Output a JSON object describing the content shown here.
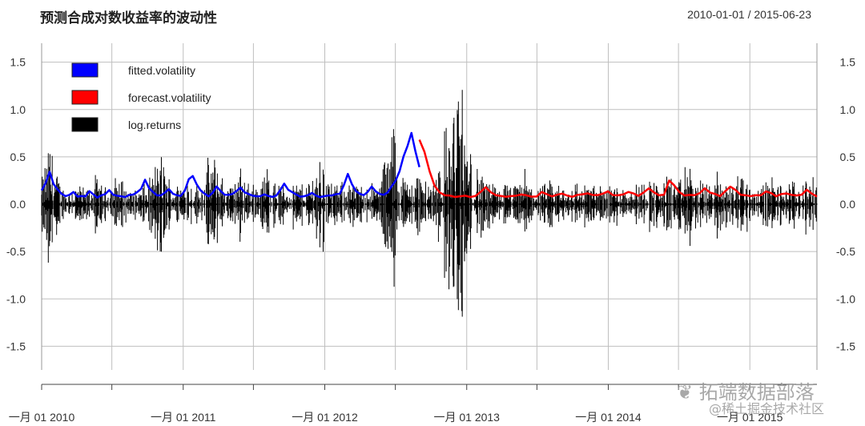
{
  "title": "预测合成对数收益率的波动性",
  "date_range": "2010-01-01 / 2015-06-23",
  "watermark": {
    "line1": "❦ 拓端数据部落",
    "line2": "@稀土掘金技术社区"
  },
  "colors": {
    "fitted": "#0000ff",
    "forecast": "#ff0000",
    "returns": "#000000",
    "grid": "#bfbfbf"
  },
  "chart_data": {
    "type": "line",
    "x_ticks": [
      "一月 01 2010",
      "一月 01 2011",
      "一月 01 2012",
      "一月 01 2013",
      "一月 01 2014",
      "一月 01 2015"
    ],
    "xlim": [
      "2010-01-01",
      "2015-06-23"
    ],
    "ylim": [
      -1.75,
      1.7
    ],
    "y_ticks": [
      1.5,
      1.0,
      0.5,
      0.0,
      -0.5,
      -1.0,
      -1.5
    ],
    "y_tick_labels": [
      "1.5",
      "1.0",
      "0.5",
      "0.0",
      "-0.5",
      "-1.0",
      "-1.5"
    ],
    "grid": true,
    "legend_placement": "top-left",
    "series": [
      {
        "name": "fitted.volatility",
        "x_start": "2010-01-01",
        "x_end": "2012-09-01",
        "values": [
          0.14,
          0.22,
          0.35,
          0.22,
          0.15,
          0.11,
          0.09,
          0.1,
          0.12,
          0.09,
          0.08,
          0.09,
          0.13,
          0.1,
          0.08,
          0.09,
          0.11,
          0.15,
          0.11,
          0.09,
          0.08,
          0.08,
          0.09,
          0.1,
          0.12,
          0.17,
          0.26,
          0.18,
          0.12,
          0.1,
          0.09,
          0.12,
          0.16,
          0.12,
          0.1,
          0.09,
          0.14,
          0.26,
          0.3,
          0.2,
          0.14,
          0.11,
          0.09,
          0.13,
          0.19,
          0.14,
          0.11,
          0.09,
          0.1,
          0.13,
          0.18,
          0.13,
          0.1,
          0.09,
          0.08,
          0.09,
          0.11,
          0.09,
          0.08,
          0.1,
          0.15,
          0.22,
          0.16,
          0.12,
          0.1,
          0.09,
          0.08,
          0.09,
          0.11,
          0.09,
          0.08,
          0.09,
          0.1,
          0.09,
          0.1,
          0.12,
          0.21,
          0.32,
          0.22,
          0.14,
          0.11,
          0.1,
          0.13,
          0.19,
          0.14,
          0.11,
          0.1,
          0.12,
          0.18,
          0.25,
          0.35,
          0.5,
          0.62,
          0.75,
          0.55,
          0.4
        ]
      },
      {
        "name": "forecast.volatility",
        "x_start": "2012-09-01",
        "x_end": "2015-06-23",
        "values": [
          0.68,
          0.55,
          0.35,
          0.2,
          0.13,
          0.1,
          0.09,
          0.08,
          0.09,
          0.1,
          0.08,
          0.09,
          0.14,
          0.18,
          0.12,
          0.09,
          0.08,
          0.08,
          0.09,
          0.1,
          0.11,
          0.09,
          0.08,
          0.09,
          0.13,
          0.1,
          0.09,
          0.1,
          0.12,
          0.09,
          0.08,
          0.09,
          0.1,
          0.12,
          0.1,
          0.09,
          0.11,
          0.14,
          0.1,
          0.09,
          0.1,
          0.13,
          0.11,
          0.09,
          0.12,
          0.16,
          0.12,
          0.1,
          0.11,
          0.26,
          0.2,
          0.13,
          0.1,
          0.09,
          0.1,
          0.12,
          0.16,
          0.13,
          0.1,
          0.09,
          0.13,
          0.18,
          0.15,
          0.11,
          0.09,
          0.08,
          0.09,
          0.1,
          0.14,
          0.11,
          0.09,
          0.1,
          0.12,
          0.1,
          0.09,
          0.11,
          0.16,
          0.12,
          0.08
        ]
      },
      {
        "name": "log.returns",
        "x_start": "2010-01-01",
        "x_end": "2015-06-23",
        "amplitude_envelope": [
          0.3,
          0.6,
          0.85,
          0.5,
          0.3,
          0.2,
          0.18,
          0.25,
          0.3,
          0.2,
          0.18,
          0.22,
          0.35,
          0.25,
          0.2,
          0.22,
          0.3,
          0.4,
          0.28,
          0.22,
          0.18,
          0.18,
          0.22,
          0.25,
          0.3,
          0.45,
          0.7,
          0.55,
          0.35,
          0.28,
          0.25,
          0.3,
          0.4,
          0.3,
          0.25,
          0.22,
          0.35,
          0.55,
          0.65,
          0.5,
          0.35,
          0.28,
          0.25,
          0.32,
          0.45,
          0.35,
          0.28,
          0.25,
          0.28,
          0.35,
          0.5,
          0.4,
          0.3,
          0.25,
          0.22,
          0.25,
          0.3,
          0.28,
          0.25,
          0.28,
          0.4,
          0.55,
          0.7,
          0.45,
          0.3,
          0.25,
          0.22,
          0.28,
          0.35,
          0.28,
          0.22,
          0.25,
          0.28,
          0.25,
          0.28,
          0.3,
          0.55,
          0.8,
          1.2,
          0.6,
          0.4,
          0.3,
          0.35,
          0.5,
          0.4,
          0.3,
          0.28,
          0.32,
          0.55,
          0.8,
          1.0,
          1.3,
          1.7,
          1.75,
          1.0,
          0.7,
          0.55,
          0.45,
          0.35,
          0.28,
          0.25,
          0.22,
          0.25,
          0.28,
          0.22,
          0.22,
          0.35,
          0.45,
          0.3,
          0.25,
          0.22,
          0.22,
          0.25,
          0.28,
          0.3,
          0.25,
          0.22,
          0.25,
          0.32,
          0.28,
          0.25,
          0.28,
          0.3,
          0.25,
          0.22,
          0.25,
          0.28,
          0.3,
          0.28,
          0.25,
          0.28,
          0.35,
          0.28,
          0.25,
          0.28,
          0.35,
          0.3,
          0.25,
          0.3,
          0.4,
          0.32,
          0.28,
          0.3,
          0.6,
          0.5,
          0.35,
          0.28,
          0.25,
          0.28,
          0.3,
          0.4,
          0.35,
          0.28,
          0.25,
          0.35,
          0.55,
          0.4,
          0.3,
          0.25,
          0.22,
          0.25,
          0.28,
          0.38,
          0.3,
          0.25,
          0.28,
          0.3,
          0.28,
          0.25,
          0.3,
          0.35,
          0.3,
          0.25
        ]
      }
    ]
  }
}
